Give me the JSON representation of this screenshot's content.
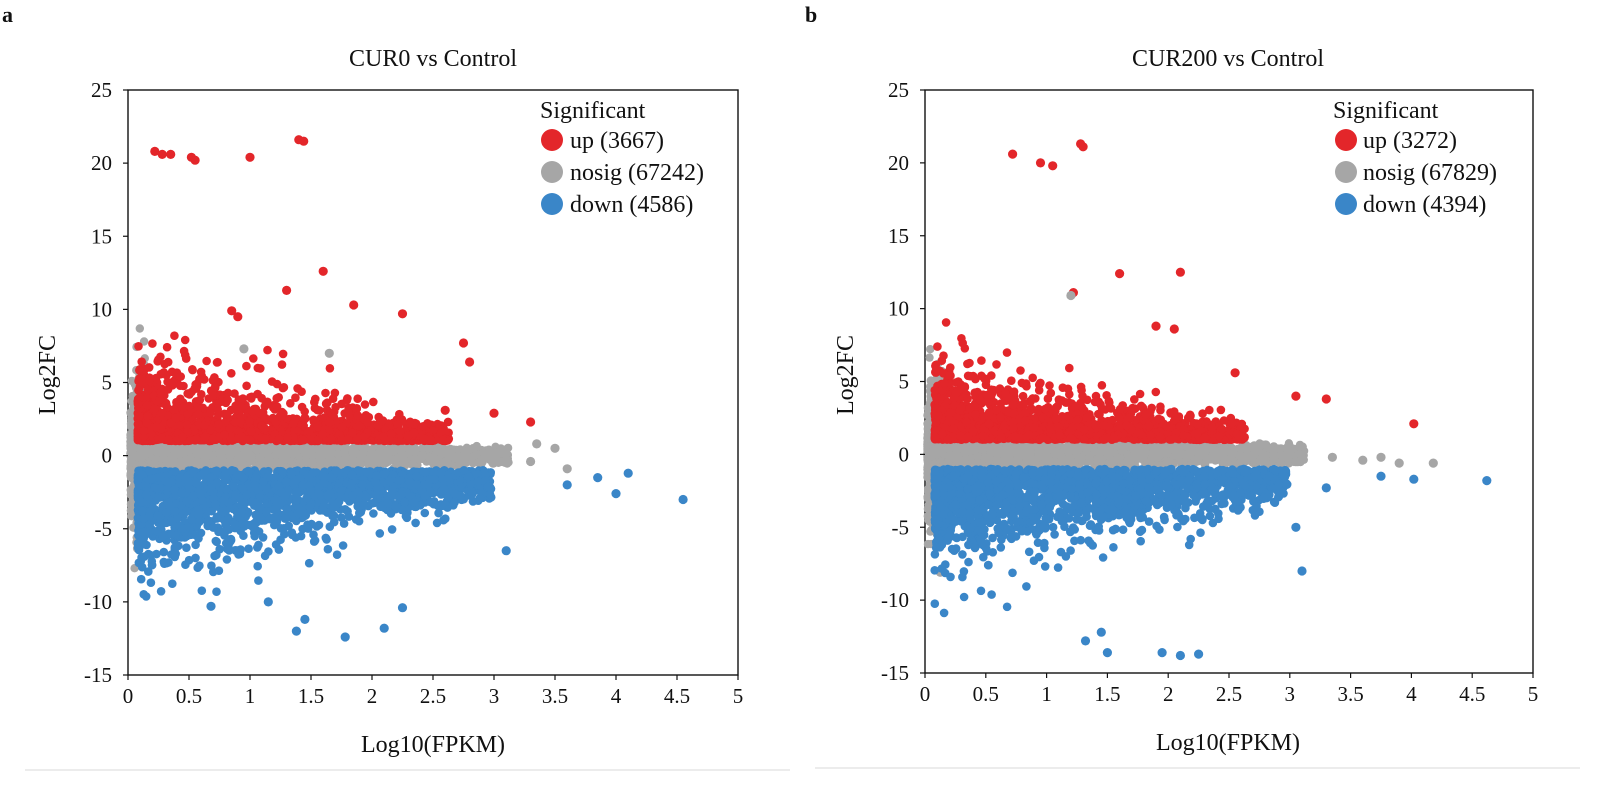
{
  "chart_data": [
    {
      "panel": "a",
      "type": "scatter",
      "title": "CUR0 vs Control",
      "xlabel": "Log10(FPKM)",
      "ylabel": "Log2FC",
      "xlim": [
        0,
        5
      ],
      "ylim": [
        -15,
        25
      ],
      "xticks": [
        "0",
        "0.5",
        "1",
        "1.5",
        "2",
        "2.5",
        "3",
        "3.5",
        "4",
        "4.5",
        "5"
      ],
      "yticks": [
        "-15",
        "-10",
        "-5",
        "0",
        "5",
        "10",
        "15",
        "20",
        "25"
      ],
      "legend_title": "Significant",
      "legend_position": "top-right",
      "series": [
        {
          "name": "up",
          "count": 3667,
          "label": "up (3667)",
          "color": "#e3262a",
          "points": [
            [
              0.22,
              20.8
            ],
            [
              0.28,
              20.6
            ],
            [
              0.35,
              20.6
            ],
            [
              0.52,
              20.4
            ],
            [
              0.55,
              20.2
            ],
            [
              1.0,
              20.4
            ],
            [
              1.4,
              21.6
            ],
            [
              1.44,
              21.5
            ],
            [
              1.6,
              12.6
            ],
            [
              1.3,
              11.3
            ],
            [
              1.85,
              10.3
            ],
            [
              0.85,
              9.9
            ],
            [
              2.25,
              9.7
            ],
            [
              0.9,
              9.5
            ],
            [
              2.75,
              7.7
            ],
            [
              2.8,
              6.4
            ],
            [
              3.0,
              2.9
            ],
            [
              3.3,
              2.3
            ],
            [
              2.6,
              3.1
            ]
          ]
        },
        {
          "name": "nosig",
          "count": 67242,
          "label": "nosig (67242)",
          "color": "#a6a6a6",
          "points": [
            [
              0.95,
              7.3
            ],
            [
              1.65,
              7.0
            ],
            [
              3.5,
              0.5
            ],
            [
              3.35,
              0.8
            ],
            [
              3.1,
              -0.3
            ],
            [
              3.6,
              -0.9
            ],
            [
              3.3,
              -0.4
            ]
          ]
        },
        {
          "name": "down",
          "count": 4586,
          "label": "down (4586)",
          "color": "#3a86c8",
          "points": [
            [
              1.78,
              -12.4
            ],
            [
              1.45,
              -11.2
            ],
            [
              1.38,
              -12.0
            ],
            [
              2.1,
              -11.8
            ],
            [
              2.25,
              -10.4
            ],
            [
              0.68,
              -10.3
            ],
            [
              1.15,
              -10.0
            ],
            [
              3.1,
              -6.5
            ],
            [
              4.55,
              -3.0
            ],
            [
              4.0,
              -2.6
            ],
            [
              4.1,
              -1.2
            ],
            [
              3.6,
              -2.0
            ],
            [
              3.85,
              -1.5
            ]
          ]
        }
      ]
    },
    {
      "panel": "b",
      "type": "scatter",
      "title": "CUR200 vs Control",
      "xlabel": "Log10(FPKM)",
      "ylabel": "Log2FC",
      "xlim": [
        0,
        5
      ],
      "ylim": [
        -15,
        25
      ],
      "xticks": [
        "0",
        "0.5",
        "1",
        "1.5",
        "2",
        "2.5",
        "3",
        "3.5",
        "4",
        "4.5",
        "5"
      ],
      "yticks": [
        "-15",
        "-10",
        "-5",
        "0",
        "5",
        "10",
        "15",
        "20",
        "25"
      ],
      "legend_title": "Significant",
      "legend_position": "top-right",
      "series": [
        {
          "name": "up",
          "count": 3272,
          "label": "up (3272)",
          "color": "#e3262a",
          "points": [
            [
              0.72,
              20.6
            ],
            [
              0.95,
              20.0
            ],
            [
              1.05,
              19.8
            ],
            [
              1.28,
              21.3
            ],
            [
              1.3,
              21.1
            ],
            [
              1.6,
              12.4
            ],
            [
              2.1,
              12.5
            ],
            [
              1.22,
              11.1
            ],
            [
              1.9,
              8.8
            ],
            [
              2.05,
              8.6
            ],
            [
              4.02,
              2.1
            ],
            [
              3.05,
              4.0
            ],
            [
              3.3,
              3.8
            ],
            [
              2.55,
              5.6
            ]
          ]
        },
        {
          "name": "nosig",
          "count": 67829,
          "label": "nosig (67829)",
          "color": "#a6a6a6",
          "points": [
            [
              1.2,
              10.9
            ],
            [
              3.6,
              -0.4
            ],
            [
              3.75,
              -0.2
            ],
            [
              3.9,
              -0.6
            ],
            [
              4.18,
              -0.6
            ],
            [
              3.35,
              -0.2
            ],
            [
              3.05,
              -0.5
            ]
          ]
        },
        {
          "name": "down",
          "count": 4394,
          "label": "down (4394)",
          "color": "#3a86c8",
          "points": [
            [
              2.1,
              -13.8
            ],
            [
              2.25,
              -13.7
            ],
            [
              1.95,
              -13.6
            ],
            [
              1.5,
              -13.6
            ],
            [
              1.32,
              -12.8
            ],
            [
              1.45,
              -12.2
            ],
            [
              3.1,
              -8.0
            ],
            [
              4.62,
              -1.8
            ],
            [
              4.02,
              -1.7
            ],
            [
              3.05,
              -5.0
            ],
            [
              3.3,
              -2.3
            ],
            [
              3.75,
              -1.5
            ]
          ]
        }
      ]
    }
  ]
}
